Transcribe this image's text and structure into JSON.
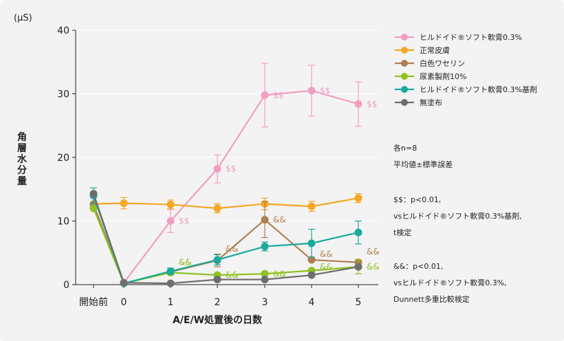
{
  "chart_data": {
    "type": "line",
    "unit_label": "(μS)",
    "ylabel": "角層水分量",
    "xlabel": "A/E/W処置後の日数",
    "categories": [
      "開始前",
      "0",
      "1",
      "2",
      "3",
      "4",
      "5"
    ],
    "ylim": [
      0,
      40
    ],
    "yticks": [
      0,
      10,
      20,
      30,
      40
    ],
    "series": [
      {
        "name": "ヒルドイド®ソフト軟膏0.3%",
        "color": "#f19ec2",
        "values": [
          12.2,
          0.3,
          10.0,
          18.2,
          29.8,
          30.5,
          28.4
        ],
        "errors": [
          null,
          null,
          1.8,
          2.2,
          5.0,
          4.0,
          3.5
        ]
      },
      {
        "name": "正常皮膚",
        "color": "#f5a623",
        "values": [
          12.7,
          12.8,
          12.6,
          12.0,
          12.7,
          12.3,
          13.6
        ],
        "errors": [
          null,
          0.9,
          0.7,
          0.7,
          0.9,
          0.8,
          0.7
        ]
      },
      {
        "name": "白色ワセリン",
        "color": "#b07f4f",
        "values": [
          12.6,
          0.2,
          2.0,
          3.8,
          10.2,
          3.9,
          3.5
        ],
        "errors": [
          null,
          null,
          null,
          1.0,
          2.8,
          null,
          null
        ]
      },
      {
        "name": "尿素製剤10%",
        "color": "#8dc21f",
        "values": [
          12.0,
          0.2,
          1.9,
          1.5,
          1.7,
          2.2,
          2.8
        ],
        "errors": [
          null,
          null,
          null,
          null,
          null,
          null,
          1.1
        ]
      },
      {
        "name": "ヒルドイド®ソフト軟膏0.3%基剤",
        "color": "#1aa99b",
        "values": [
          14.0,
          0.2,
          2.1,
          3.9,
          6.0,
          6.5,
          8.2
        ],
        "errors": [
          1.2,
          null,
          0.5,
          0.8,
          0.7,
          2.2,
          1.8
        ]
      },
      {
        "name": "無塗布",
        "color": "#6e6e6e",
        "values": [
          14.3,
          0.3,
          0.2,
          0.8,
          0.8,
          1.5,
          2.8
        ],
        "errors": [
          null,
          null,
          null,
          null,
          null,
          null,
          null
        ]
      }
    ],
    "annotations": [
      {
        "text": "$$",
        "color": "#f19ec2",
        "x": 2,
        "y": 10.0
      },
      {
        "text": "$$",
        "color": "#f19ec2",
        "x": 3,
        "y": 18.2
      },
      {
        "text": "$$",
        "color": "#f19ec2",
        "x": 4,
        "y": 29.8
      },
      {
        "text": "$$",
        "color": "#f19ec2",
        "x": 5,
        "y": 30.5
      },
      {
        "text": "$$",
        "color": "#f19ec2",
        "x": 6,
        "y": 28.4
      },
      {
        "text": "&&",
        "color": "#b07f4f",
        "x": 2,
        "y": 3.5
      },
      {
        "text": "&&",
        "color": "#8dc21f",
        "x": 2,
        "y": 3.5
      },
      {
        "text": "&&",
        "color": "#b07f4f",
        "x": 3,
        "y": 5.6
      },
      {
        "text": "&&",
        "color": "#8dc21f",
        "x": 3,
        "y": 1.5
      },
      {
        "text": "&&",
        "color": "#b07f4f",
        "x": 4,
        "y": 10.2
      },
      {
        "text": "&&",
        "color": "#8dc21f",
        "x": 4,
        "y": 1.7
      },
      {
        "text": "&&",
        "color": "#8dc21f",
        "x": 5,
        "y": 2.8
      },
      {
        "text": "&&",
        "color": "#b07f4f",
        "x": 5,
        "y": 4.8
      },
      {
        "text": "&&",
        "color": "#b07f4f",
        "x": 6,
        "y": 5.2
      },
      {
        "text": "&&",
        "color": "#8dc21f",
        "x": 6,
        "y": 2.8
      }
    ]
  },
  "notes": [
    "各n=8",
    "平均値±標準誤差",
    "$$：p<0.01,",
    "vsヒルドイド®ソフト軟膏0.3%基剤,",
    "t検定",
    "&&：p<0.01,",
    "vsヒルドイド®ソフト軟膏0.3%,",
    "Dunnett多重比較検定"
  ]
}
